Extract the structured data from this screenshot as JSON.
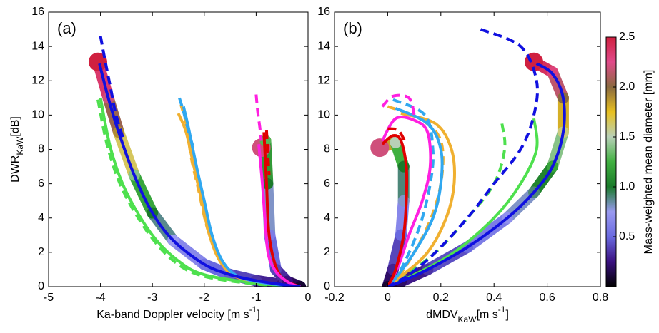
{
  "chart_data": [
    {
      "type": "line",
      "panel_label": "(a)",
      "xlabel": [
        {
          "text": "Ka-band Doppler velocity [m s"
        },
        {
          "text": "-1",
          "script": "super"
        },
        {
          "text": "]"
        }
      ],
      "ylabel": [
        {
          "text": "DWR"
        },
        {
          "text": "KaW",
          "script": "sub"
        },
        {
          "text": "[dB]"
        }
      ],
      "xlim": [
        -5,
        0
      ],
      "xticks": [
        -5,
        -4,
        -3,
        -2,
        -1,
        0
      ],
      "ylim": [
        0,
        16
      ],
      "yticks": [
        0,
        2,
        4,
        6,
        8,
        10,
        12,
        14,
        16
      ],
      "series": [
        {
          "kind": "colormap",
          "x": [
            -4.05,
            -3.85,
            -3.65,
            -3.35,
            -3.0,
            -2.6,
            -2.0,
            -1.5,
            -1.0,
            -0.5,
            -0.15
          ],
          "y": [
            13.1,
            11.0,
            9.0,
            6.5,
            4.3,
            2.7,
            1.3,
            0.7,
            0.35,
            0.12,
            0
          ],
          "c": [
            2.5,
            2.2,
            1.9,
            1.4,
            1.0,
            0.75,
            0.55,
            0.45,
            0.35,
            0.25,
            0.15
          ]
        },
        {
          "kind": "colormap",
          "x": [
            -0.9,
            -0.82,
            -0.78,
            -0.74,
            -0.62,
            -0.4,
            -0.15
          ],
          "y": [
            8.1,
            8.5,
            6.0,
            3.0,
            1.0,
            0.3,
            0
          ],
          "c": [
            2.2,
            1.3,
            1.0,
            0.6,
            0.4,
            0.25,
            0.1
          ]
        },
        {
          "color": "#4ee04e",
          "style": "solid",
          "x": [
            -4.0,
            -3.8,
            -3.5,
            -3.0,
            -2.5,
            -2.0,
            -1.0,
            -0.2
          ],
          "y": [
            11.0,
            8.0,
            5.5,
            3.0,
            1.5,
            0.7,
            0.2,
            0
          ]
        },
        {
          "color": "#4ee04e",
          "style": "dashed",
          "x": [
            -4.05,
            -3.85,
            -3.55,
            -3.05,
            -2.55,
            -2.0,
            -1.0,
            -0.2
          ],
          "y": [
            10.9,
            8.0,
            5.5,
            3.0,
            1.4,
            0.6,
            0.15,
            0
          ]
        },
        {
          "color": "#f0b030",
          "style": "solid",
          "x": [
            -2.5,
            -2.35,
            -2.2,
            -2.05,
            -1.9,
            -1.7,
            -1.4,
            -0.8,
            -0.15
          ],
          "y": [
            10.1,
            9.0,
            7.0,
            5.0,
            3.0,
            1.5,
            0.6,
            0.2,
            0
          ]
        },
        {
          "color": "#f0b030",
          "style": "dashed",
          "x": [
            -2.45,
            -2.35,
            -2.25,
            -2.1,
            -1.95,
            -1.75
          ],
          "y": [
            10.6,
            9.5,
            7.5,
            5.5,
            3.5,
            1.8
          ]
        },
        {
          "color": "#30a8f0",
          "style": "solid",
          "x": [
            -2.4,
            -2.3,
            -2.15,
            -2.0,
            -1.85,
            -1.65,
            -1.35,
            -0.8,
            -0.15
          ],
          "y": [
            10.5,
            9.2,
            7.0,
            5.0,
            3.0,
            1.5,
            0.6,
            0.2,
            0
          ]
        },
        {
          "color": "#30a8f0",
          "style": "dashed",
          "x": [
            -2.48,
            -2.4,
            -2.3,
            -2.2
          ],
          "y": [
            11.0,
            10.2,
            9.0,
            8.0
          ]
        },
        {
          "color": "#e00000",
          "style": "solid",
          "x": [
            -0.85,
            -0.8,
            -0.75,
            -0.6,
            -0.4,
            -0.15
          ],
          "y": [
            9.0,
            6.0,
            3.0,
            1.0,
            0.3,
            0
          ]
        },
        {
          "color": "#e00000",
          "style": "dashed",
          "x": [
            -0.8,
            -0.78,
            -0.75
          ],
          "y": [
            9.1,
            8.0,
            6.5
          ]
        },
        {
          "color": "#ff20e0",
          "style": "solid",
          "x": [
            -0.95,
            -0.88,
            -0.82,
            -0.76,
            -0.6,
            -0.35,
            -0.15
          ],
          "y": [
            8.3,
            6.0,
            3.5,
            1.8,
            0.8,
            0.2,
            0
          ]
        },
        {
          "color": "#ff20e0",
          "style": "dashed",
          "x": [
            -1.0,
            -0.97,
            -0.93,
            -0.9
          ],
          "y": [
            11.2,
            10.2,
            9.3,
            8.5
          ]
        },
        {
          "color": "#1010e0",
          "style": "solid",
          "x": [
            -4.02,
            -3.85,
            -3.65,
            -3.35,
            -3.0,
            -2.6,
            -2.0,
            -1.5,
            -1.0,
            -0.5,
            -0.15
          ],
          "y": [
            13.0,
            11.0,
            9.0,
            6.5,
            4.3,
            2.7,
            1.3,
            0.7,
            0.35,
            0.12,
            0
          ]
        },
        {
          "color": "#1010e0",
          "style": "dashed",
          "x": [
            -4.0,
            -3.9,
            -3.8,
            -3.7,
            -3.55
          ],
          "y": [
            14.6,
            13.0,
            11.5,
            10.0,
            8.5
          ]
        }
      ]
    },
    {
      "type": "line",
      "panel_label": "(b)",
      "xlabel": [
        {
          "text": "dMDV"
        },
        {
          "text": "KaW",
          "script": "sub"
        },
        {
          "text": "[m s"
        },
        {
          "text": "-1",
          "script": "super"
        },
        {
          "text": "]"
        }
      ],
      "xlim": [
        -0.2,
        0.8
      ],
      "xticks": [
        -0.2,
        0,
        0.2,
        0.4,
        0.6,
        0.8
      ],
      "ylim": [
        0,
        16
      ],
      "yticks": [
        0,
        2,
        4,
        6,
        8,
        10,
        12,
        14,
        16
      ],
      "series": [
        {
          "kind": "colormap",
          "x": [
            0.55,
            0.62,
            0.66,
            0.66,
            0.62,
            0.55,
            0.45,
            0.3,
            0.15,
            0.05,
            0
          ],
          "y": [
            13.1,
            12.5,
            11.0,
            9.0,
            7.0,
            5.5,
            4.0,
            2.3,
            1.0,
            0.3,
            0
          ],
          "c": [
            2.5,
            2.3,
            2.0,
            1.6,
            1.2,
            0.9,
            0.7,
            0.5,
            0.35,
            0.2,
            0.1
          ]
        },
        {
          "kind": "colormap",
          "x": [
            -0.03,
            0.03,
            0.06,
            0.06,
            0.05,
            0.02,
            0
          ],
          "y": [
            8.1,
            8.4,
            7.0,
            5.0,
            3.0,
            1.0,
            0
          ],
          "c": [
            2.2,
            1.5,
            1.0,
            0.8,
            0.5,
            0.3,
            0.1
          ]
        },
        {
          "color": "#4ee04e",
          "style": "solid",
          "x": [
            0.55,
            0.56,
            0.5,
            0.4,
            0.25,
            0.1,
            0
          ],
          "y": [
            9.8,
            8.0,
            6.0,
            4.0,
            2.0,
            0.7,
            0
          ]
        },
        {
          "color": "#4ee04e",
          "style": "dashed",
          "x": [
            0.43,
            0.44,
            0.4,
            0.3,
            0.18,
            0.06,
            0
          ],
          "y": [
            9.5,
            8.0,
            6.0,
            4.0,
            2.0,
            0.6,
            0
          ]
        },
        {
          "color": "#f0b030",
          "style": "solid",
          "x": [
            0.05,
            0.18,
            0.24,
            0.25,
            0.22,
            0.15,
            0.05,
            0
          ],
          "y": [
            10.1,
            9.5,
            8.0,
            6.0,
            4.0,
            2.0,
            0.6,
            0
          ]
        },
        {
          "color": "#f0b030",
          "style": "dashed",
          "x": [
            0.0,
            0.12,
            0.2,
            0.2,
            0.15,
            0.06,
            0
          ],
          "y": [
            10.5,
            9.8,
            8.5,
            6.0,
            3.5,
            1.0,
            0
          ]
        },
        {
          "color": "#30a8f0",
          "style": "solid",
          "x": [
            0.03,
            0.15,
            0.2,
            0.2,
            0.17,
            0.1,
            0.03,
            0
          ],
          "y": [
            10.4,
            9.5,
            8.0,
            6.0,
            4.0,
            2.0,
            0.5,
            0
          ]
        },
        {
          "color": "#30a8f0",
          "style": "dashed",
          "x": [
            0.02,
            0.14,
            0.17,
            0.16,
            0.12,
            0.05,
            0
          ],
          "y": [
            10.9,
            10.0,
            8.0,
            6.0,
            3.5,
            1.0,
            0
          ]
        },
        {
          "color": "#ff20e0",
          "style": "solid",
          "x": [
            -0.02,
            0.03,
            0.1,
            0.15,
            0.16,
            0.13,
            0.08,
            0.04,
            0
          ],
          "y": [
            8.5,
            9.8,
            9.7,
            9.0,
            7.0,
            5.0,
            3.0,
            1.2,
            0
          ]
        },
        {
          "color": "#ff20e0",
          "style": "dashed",
          "x": [
            -0.02,
            0.02,
            0.08,
            0.1
          ],
          "y": [
            10.5,
            11.1,
            11.0,
            10.0
          ]
        },
        {
          "color": "#e00000",
          "style": "solid",
          "x": [
            -0.02,
            0.02,
            0.05,
            0.07,
            0.07,
            0.06,
            0.03,
            0
          ],
          "y": [
            8.3,
            8.8,
            8.5,
            7.0,
            5.0,
            3.0,
            1.0,
            0
          ]
        },
        {
          "color": "#e00000",
          "style": "dashed",
          "x": [
            0.0,
            0.04,
            0.07
          ],
          "y": [
            9.2,
            9.1,
            8.3
          ]
        },
        {
          "color": "#1010e0",
          "style": "solid",
          "x": [
            0.56,
            0.62,
            0.66,
            0.66,
            0.62,
            0.55,
            0.45,
            0.3,
            0.15,
            0.05,
            0
          ],
          "y": [
            13.0,
            12.4,
            11.0,
            9.0,
            7.0,
            5.5,
            4.0,
            2.3,
            1.0,
            0.3,
            0
          ]
        },
        {
          "color": "#1010e0",
          "style": "dashed",
          "x": [
            0.35,
            0.5,
            0.56,
            0.55,
            0.5,
            0.4,
            0.3,
            0.18,
            0.08,
            0
          ],
          "y": [
            15.0,
            14.0,
            12.0,
            10.0,
            8.0,
            6.0,
            4.0,
            2.0,
            0.7,
            0
          ]
        }
      ]
    }
  ],
  "colorbar": {
    "label": "Mass-weighted mean diameter [mm]",
    "lim": [
      0,
      2.5
    ],
    "ticks": [
      0.5,
      {
        "value": 1,
        "label": "1.0"
      },
      1.5,
      {
        "value": 2,
        "label": "2.0"
      },
      2.5
    ],
    "colors": [
      "#000000",
      "#3a1080",
      "#6a6ae0",
      "#9a9af0",
      "#1a7a2a",
      "#40b040",
      "#b8d0b8",
      "#e8c020",
      "#8a6a40",
      "#e04a8a",
      "#d02040"
    ]
  }
}
